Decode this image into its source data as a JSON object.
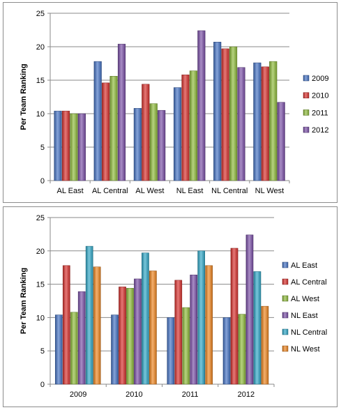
{
  "chart_data": [
    {
      "type": "bar",
      "ylabel": "Per Team Ranking",
      "ylim": [
        0,
        25
      ],
      "yticks": [
        0,
        5,
        10,
        15,
        20,
        25
      ],
      "grid": true,
      "legend": "right",
      "categories": [
        "AL East",
        "AL Central",
        "AL West",
        "NL East",
        "NL Central",
        "NL West"
      ],
      "series": [
        {
          "name": "2009",
          "color": "#4472c4",
          "values": [
            10.4,
            17.8,
            10.8,
            13.9,
            20.7,
            17.6
          ]
        },
        {
          "name": "2010",
          "color": "#d9302c",
          "values": [
            10.4,
            14.6,
            14.4,
            15.8,
            19.7,
            17.0
          ]
        },
        {
          "name": "2011",
          "color": "#8fbc3a",
          "values": [
            10.0,
            15.6,
            11.5,
            16.4,
            20.0,
            17.8
          ]
        },
        {
          "name": "2012",
          "color": "#7a4fa8",
          "values": [
            10.0,
            20.4,
            10.5,
            22.4,
            16.9,
            11.7
          ]
        }
      ]
    },
    {
      "type": "bar",
      "ylabel": "Per Team Ranking",
      "ylim": [
        0,
        25
      ],
      "yticks": [
        0,
        5,
        10,
        15,
        20,
        25
      ],
      "grid": true,
      "legend": "right",
      "categories": [
        "2009",
        "2010",
        "2011",
        "2012"
      ],
      "series": [
        {
          "name": "AL East",
          "color": "#4472c4",
          "values": [
            10.4,
            10.4,
            10.0,
            10.0
          ]
        },
        {
          "name": "AL Central",
          "color": "#d9302c",
          "values": [
            17.8,
            14.6,
            15.6,
            20.4
          ]
        },
        {
          "name": "AL West",
          "color": "#8fbc3a",
          "values": [
            10.8,
            14.4,
            11.5,
            10.5
          ]
        },
        {
          "name": "NL East",
          "color": "#7a4fa8",
          "values": [
            13.9,
            15.8,
            16.4,
            22.4
          ]
        },
        {
          "name": "NL Central",
          "color": "#2fa8c8",
          "values": [
            20.7,
            19.7,
            20.0,
            16.9
          ]
        },
        {
          "name": "NL West",
          "color": "#f0861f",
          "values": [
            17.6,
            17.0,
            17.8,
            11.7
          ]
        }
      ]
    }
  ]
}
